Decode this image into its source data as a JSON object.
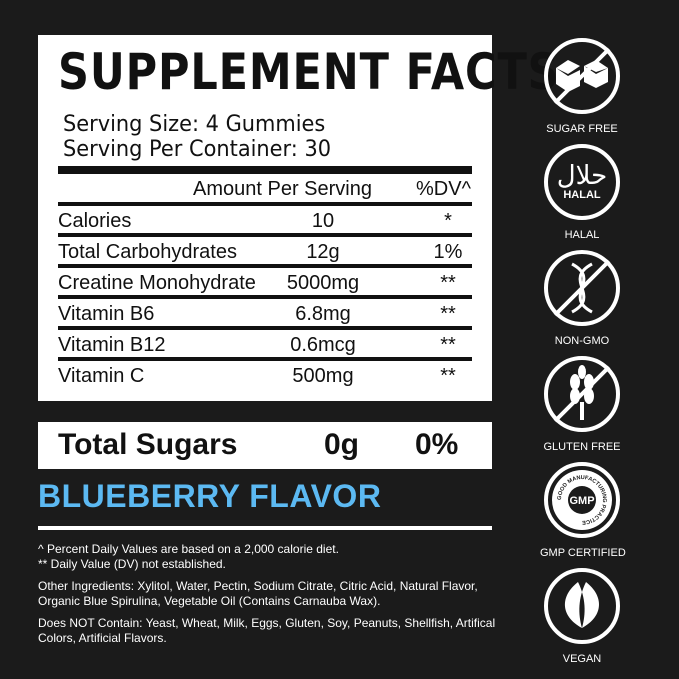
{
  "facts": {
    "title": "SUPPLEMENT FACTS",
    "serving_size": "Serving Size: 4 Gummies",
    "servings_per_container": "Serving Per Container: 30",
    "header": {
      "amount": "Amount Per Serving",
      "dv": "%DV^"
    },
    "rows": [
      {
        "name": "Calories",
        "amount": "10",
        "dv": "*"
      },
      {
        "name": "Total Carbohydrates",
        "amount": "12g",
        "dv": "1%"
      },
      {
        "name": "Creatine Monohydrate",
        "amount": "5000mg",
        "dv": "**"
      },
      {
        "name": "Vitamin B6",
        "amount": "6.8mg",
        "dv": "**"
      },
      {
        "name": "Vitamin B12",
        "amount": "0.6mcg",
        "dv": "**"
      },
      {
        "name": "Vitamin C",
        "amount": "500mg",
        "dv": "**"
      }
    ]
  },
  "total_sugars": {
    "label": "Total Sugars",
    "amount": "0g",
    "dv": "0%"
  },
  "flavor": {
    "label": "BLUEBERRY FLAVOR",
    "color": "#5cb9f2"
  },
  "notes": {
    "dv_note": "^ Percent Daily Values are based on a 2,000 calorie diet.",
    "dv_not_established": "** Daily Value (DV) not established.",
    "ingredients": "Other Ingredients: Xylitol, Water, Pectin, Sodium Citrate, Citric Acid, Natural Flavor, Organic Blue Spirulina, Vegetable Oil (Contains Carnauba Wax).",
    "does_not_contain": "Does NOT Contain: Yeast, Wheat, Milk, Eggs, Gluten, Soy, Peanuts, Shellfish, Artifical Colors, Artificial Flavors."
  },
  "badges": [
    {
      "label": "SUGAR FREE",
      "icon": "sugar-cubes-crossed-icon"
    },
    {
      "label": "HALAL",
      "icon": "halal-icon",
      "inner": "HALAL"
    },
    {
      "label": "NON-GMO",
      "icon": "dna-crossed-icon"
    },
    {
      "label": "GLUTEN FREE",
      "icon": "wheat-crossed-icon"
    },
    {
      "label": "GMP CERTIFIED",
      "icon": "gmp-seal-icon",
      "inner": "GMP",
      "ring": "GOOD MANUFACTURING PRACTICE"
    },
    {
      "label": "VEGAN",
      "icon": "leaf-icon"
    }
  ]
}
